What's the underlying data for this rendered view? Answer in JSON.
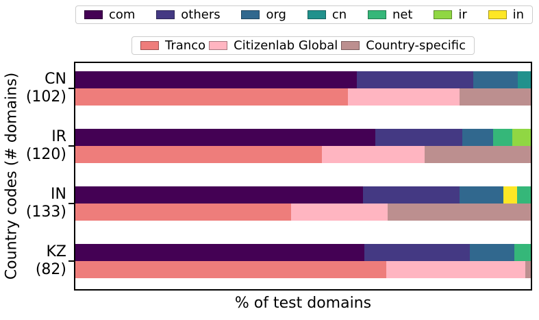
{
  "figure": {
    "xlabel": "% of test domains",
    "ylabel": "Country codes (# domains)"
  },
  "legend_tlds": {
    "items": [
      {
        "label": "com",
        "color": "#440154"
      },
      {
        "label": "others",
        "color": "#443983"
      },
      {
        "label": "org",
        "color": "#31688e"
      },
      {
        "label": "cn",
        "color": "#21918c"
      },
      {
        "label": "net",
        "color": "#35b779"
      },
      {
        "label": "ir",
        "color": "#90d743"
      },
      {
        "label": "in",
        "color": "#fde725"
      }
    ]
  },
  "legend_lists": {
    "items": [
      {
        "label": "Tranco",
        "color": "#ee7d7b"
      },
      {
        "label": "Citizenlab Global",
        "color": "#ffb5c1"
      },
      {
        "label": "Country-specific",
        "color": "#bc8f8f"
      }
    ]
  },
  "chart_data": {
    "type": "bar",
    "orientation": "horizontal",
    "stacked": true,
    "title": "",
    "xlabel": "% of test domains",
    "ylabel": "Country codes (# domains)",
    "x_range_percent": [
      0,
      100
    ],
    "x_tick_labels": [],
    "grid": false,
    "legend_position": "top, two rows above axes",
    "groups": [
      {
        "code": "CN",
        "domains": 102,
        "domains_label": "(102)",
        "tld_bar": [
          {
            "name": "com",
            "percent": 61.8
          },
          {
            "name": "others",
            "percent": 25.5
          },
          {
            "name": "org",
            "percent": 9.8
          },
          {
            "name": "cn",
            "percent": 2.9
          }
        ],
        "list_bar": [
          {
            "name": "Tranco",
            "percent": 59.8
          },
          {
            "name": "Citizenlab Global",
            "percent": 24.5
          },
          {
            "name": "Country-specific",
            "percent": 15.7
          }
        ]
      },
      {
        "code": "IR",
        "domains": 120,
        "domains_label": "(120)",
        "tld_bar": [
          {
            "name": "com",
            "percent": 65.8
          },
          {
            "name": "others",
            "percent": 19.2
          },
          {
            "name": "org",
            "percent": 6.7
          },
          {
            "name": "net",
            "percent": 4.2
          },
          {
            "name": "ir",
            "percent": 4.1
          }
        ],
        "list_bar": [
          {
            "name": "Tranco",
            "percent": 54.2
          },
          {
            "name": "Citizenlab Global",
            "percent": 22.5
          },
          {
            "name": "Country-specific",
            "percent": 23.3
          }
        ]
      },
      {
        "code": "IN",
        "domains": 133,
        "domains_label": "(133)",
        "tld_bar": [
          {
            "name": "com",
            "percent": 63.2
          },
          {
            "name": "others",
            "percent": 21.1
          },
          {
            "name": "org",
            "percent": 9.7
          },
          {
            "name": "in",
            "percent": 3.0
          },
          {
            "name": "net",
            "percent": 3.0
          }
        ],
        "list_bar": [
          {
            "name": "Tranco",
            "percent": 47.4
          },
          {
            "name": "Citizenlab Global",
            "percent": 21.1
          },
          {
            "name": "Country-specific",
            "percent": 31.5
          }
        ]
      },
      {
        "code": "KZ",
        "domains": 82,
        "domains_label": "(82)",
        "tld_bar": [
          {
            "name": "com",
            "percent": 63.4
          },
          {
            "name": "others",
            "percent": 23.2
          },
          {
            "name": "org",
            "percent": 9.8
          },
          {
            "name": "net",
            "percent": 3.6
          }
        ],
        "list_bar": [
          {
            "name": "Tranco",
            "percent": 68.3
          },
          {
            "name": "Citizenlab Global",
            "percent": 30.5
          },
          {
            "name": "Country-specific",
            "percent": 1.2
          }
        ]
      }
    ]
  }
}
